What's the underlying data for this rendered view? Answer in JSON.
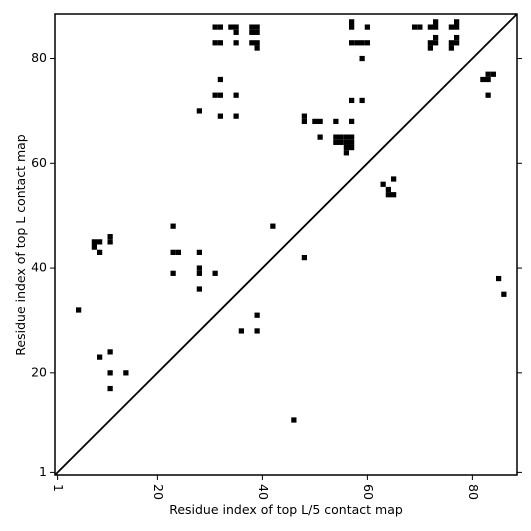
{
  "chart_data": {
    "type": "scatter",
    "title": "",
    "xlabel": "Residue index of top L/5 contact map",
    "ylabel": "Residue index of top L contact map",
    "xlim": [
      0.5,
      88.5
    ],
    "ylim": [
      0.5,
      88.5
    ],
    "x_ticks": [
      1,
      20,
      40,
      60,
      80
    ],
    "y_ticks": [
      1,
      20,
      40,
      60,
      80
    ],
    "x_tick_rotation": 90,
    "grid": false,
    "legend": "none",
    "marker": "square",
    "marker_color": "#000000",
    "diagonal": {
      "from": [
        0.5,
        0.5
      ],
      "to": [
        88.5,
        88.5
      ],
      "color": "#000000"
    },
    "series": [
      {
        "name": "",
        "points": [
          [
            5,
            32
          ],
          [
            8,
            44
          ],
          [
            8,
            45
          ],
          [
            9,
            43
          ],
          [
            9,
            45
          ],
          [
            9,
            23
          ],
          [
            11,
            45
          ],
          [
            11,
            46
          ],
          [
            11,
            24
          ],
          [
            11,
            20
          ],
          [
            11,
            17
          ],
          [
            14,
            20
          ],
          [
            23,
            48
          ],
          [
            23,
            43
          ],
          [
            24,
            43
          ],
          [
            23,
            39
          ],
          [
            28,
            70
          ],
          [
            28,
            43
          ],
          [
            28,
            39
          ],
          [
            28,
            40
          ],
          [
            28,
            36
          ],
          [
            31,
            86
          ],
          [
            32,
            86
          ],
          [
            31,
            83
          ],
          [
            32,
            83
          ],
          [
            31,
            73
          ],
          [
            32,
            73
          ],
          [
            32,
            76
          ],
          [
            32,
            69
          ],
          [
            31,
            39
          ],
          [
            34,
            86
          ],
          [
            35,
            86
          ],
          [
            35,
            85
          ],
          [
            35,
            83
          ],
          [
            35,
            73
          ],
          [
            35,
            69
          ],
          [
            36,
            28
          ],
          [
            38,
            86
          ],
          [
            39,
            86
          ],
          [
            38,
            85
          ],
          [
            39,
            85
          ],
          [
            38,
            83
          ],
          [
            39,
            83
          ],
          [
            39,
            82
          ],
          [
            39,
            31
          ],
          [
            39,
            28
          ],
          [
            42,
            48
          ],
          [
            46,
            11
          ],
          [
            48,
            69
          ],
          [
            48,
            68
          ],
          [
            48,
            42
          ],
          [
            50,
            68
          ],
          [
            51,
            68
          ],
          [
            51,
            65
          ],
          [
            54,
            68
          ],
          [
            54,
            65
          ],
          [
            55,
            65
          ],
          [
            56,
            65
          ],
          [
            57,
            65
          ],
          [
            54,
            64
          ],
          [
            55,
            64
          ],
          [
            56,
            64
          ],
          [
            57,
            64
          ],
          [
            56,
            63
          ],
          [
            57,
            63
          ],
          [
            56,
            62
          ],
          [
            57,
            87
          ],
          [
            57,
            86
          ],
          [
            57,
            83
          ],
          [
            58,
            83
          ],
          [
            59,
            83
          ],
          [
            60,
            83
          ],
          [
            60,
            86
          ],
          [
            59,
            80
          ],
          [
            57,
            72
          ],
          [
            59,
            72
          ],
          [
            57,
            68
          ],
          [
            63,
            56
          ],
          [
            64,
            55
          ],
          [
            64,
            54
          ],
          [
            65,
            54
          ],
          [
            65,
            57
          ],
          [
            69,
            86
          ],
          [
            70,
            86
          ],
          [
            72,
            86
          ],
          [
            73,
            86
          ],
          [
            73,
            87
          ],
          [
            72,
            83
          ],
          [
            73,
            83
          ],
          [
            73,
            84
          ],
          [
            72,
            82
          ],
          [
            76,
            86
          ],
          [
            77,
            86
          ],
          [
            77,
            87
          ],
          [
            76,
            83
          ],
          [
            77,
            83
          ],
          [
            77,
            84
          ],
          [
            76,
            82
          ],
          [
            82,
            76
          ],
          [
            83,
            76
          ],
          [
            83,
            77
          ],
          [
            84,
            77
          ],
          [
            83,
            73
          ],
          [
            85,
            38
          ],
          [
            86,
            35
          ]
        ]
      }
    ]
  }
}
